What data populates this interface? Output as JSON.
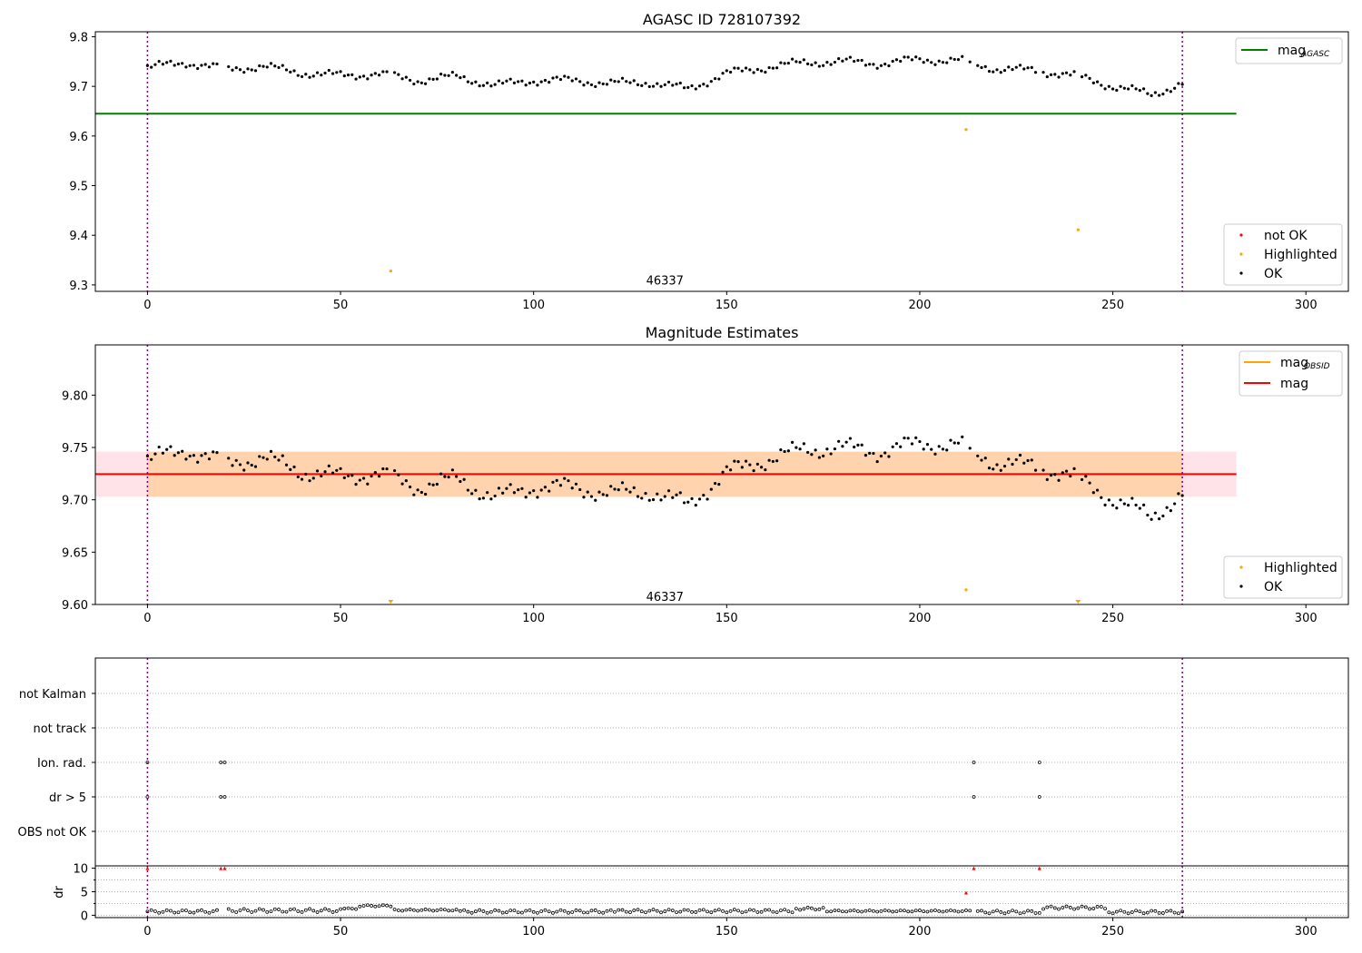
{
  "chart_data": [
    {
      "id": "p1",
      "type": "scatter",
      "title": "AGASC ID 728107392",
      "xlim": [
        -13.5,
        311
      ],
      "ylim": [
        9.287,
        9.81
      ],
      "xticks": [
        0,
        50,
        100,
        150,
        200,
        250,
        300
      ],
      "yticks": [
        9.3,
        9.4,
        9.5,
        9.6,
        9.7,
        9.8
      ],
      "ytick_labels": [
        "9.3",
        "9.4",
        "9.5",
        "9.6",
        "9.7",
        "9.8"
      ],
      "vlines": [
        0,
        268
      ],
      "hlines": [
        {
          "y": 9.645,
          "x0": -13.5,
          "x1": 282,
          "color": "#008000",
          "name": "mag_AGASC"
        }
      ],
      "annotation": {
        "text": "46337",
        "x": 134,
        "y": 9.31
      },
      "series_ok": "ok",
      "highlighted": [
        [
          63,
          9.328
        ],
        [
          212,
          9.613
        ],
        [
          241,
          9.411
        ]
      ],
      "not_ok": [],
      "legend_lines": [
        {
          "label": "mag",
          "sub": "AGASC",
          "color": "#008000"
        }
      ],
      "legend_points": [
        {
          "label": "not OK",
          "color": "#ff0000"
        },
        {
          "label": "Highlighted",
          "color": "#ffa500"
        },
        {
          "label": "OK",
          "color": "#000000"
        }
      ]
    },
    {
      "id": "p2",
      "type": "scatter",
      "title": "Magnitude Estimates",
      "xlim": [
        -13.5,
        311
      ],
      "ylim": [
        9.6,
        9.848
      ],
      "xticks": [
        0,
        50,
        100,
        150,
        200,
        250,
        300
      ],
      "yticks": [
        9.6,
        9.65,
        9.7,
        9.75,
        9.8
      ],
      "ytick_labels": [
        "9.60",
        "9.65",
        "9.70",
        "9.75",
        "9.80"
      ],
      "vlines": [
        0,
        268
      ],
      "bands": [
        {
          "y0": 9.703,
          "y1": 9.746,
          "x0": -13.5,
          "x1": 282,
          "color": "#ffc0cb",
          "opacity": 0.45
        },
        {
          "y0": 9.703,
          "y1": 9.746,
          "x0": 0,
          "x1": 268,
          "color": "#ffa500",
          "opacity": 0.25
        }
      ],
      "hlines": [
        {
          "y": 9.7245,
          "x0": 0,
          "x1": 268,
          "color": "#ffa500",
          "name": "mag_OBSID"
        },
        {
          "y": 9.7245,
          "x0": -13.5,
          "x1": 282,
          "color": "#ff0000",
          "name": "mag"
        }
      ],
      "annotation": {
        "text": "46337",
        "x": 134,
        "y": 9.608
      },
      "series_ok": "ok",
      "highlighted": [
        [
          212,
          9.614
        ]
      ],
      "highlighted_clipped": [
        63,
        241
      ],
      "legend_lines": [
        {
          "label": "mag",
          "sub": "OBSID",
          "color": "#ffa500"
        },
        {
          "label": "mag",
          "sub": "",
          "color": "#ff0000"
        }
      ],
      "legend_points": [
        {
          "label": "Highlighted",
          "color": "#ffa500"
        },
        {
          "label": "OK",
          "color": "#000000"
        }
      ]
    },
    {
      "id": "p3",
      "type": "scatter",
      "title": "",
      "xlim": [
        -13.5,
        311
      ],
      "flag_rows": [
        "not Kalman",
        "not track",
        "Ion. rad.",
        "dr > 5",
        "OBS not OK"
      ],
      "vlines": [
        0,
        268
      ],
      "flags": {
        "not Kalman": [],
        "not track": [],
        "Ion. rad.": [
          0,
          19,
          20,
          214,
          231
        ],
        "dr > 5": [
          0,
          19,
          20,
          214,
          231
        ],
        "OBS not OK": []
      }
    },
    {
      "id": "p4",
      "type": "scatter",
      "title": "",
      "ylabel": "dr",
      "xlim": [
        -13.5,
        311
      ],
      "ylim": [
        -0.5,
        10.5
      ],
      "xticks": [
        0,
        50,
        100,
        150,
        200,
        250,
        300
      ],
      "yticks": [
        0,
        5,
        10
      ],
      "ytick_labels": [
        "0",
        "5",
        "10"
      ],
      "minor_yticks": [
        2.5,
        7.5
      ],
      "vlines": [
        0,
        268
      ],
      "high_points": [
        [
          0,
          10
        ],
        [
          19,
          10
        ],
        [
          20,
          10
        ],
        [
          212,
          4.8
        ],
        [
          214,
          10
        ],
        [
          231,
          10
        ]
      ],
      "dr_segments": [
        {
          "x0": 0,
          "x1": 18,
          "base": 0.8,
          "amp": 0.6
        },
        {
          "x0": 21,
          "x1": 49,
          "base": 1.0,
          "amp": 0.7
        },
        {
          "x0": 50,
          "x1": 54,
          "base": 1.4,
          "amp": 0.2
        },
        {
          "x0": 55,
          "x1": 63,
          "base": 2.0,
          "amp": 0.3
        },
        {
          "x0": 64,
          "x1": 80,
          "base": 1.1,
          "amp": 0.3
        },
        {
          "x0": 81,
          "x1": 120,
          "base": 0.8,
          "amp": 0.6
        },
        {
          "x0": 121,
          "x1": 167,
          "base": 0.9,
          "amp": 0.6
        },
        {
          "x0": 168,
          "x1": 175,
          "base": 1.4,
          "amp": 0.5
        },
        {
          "x0": 176,
          "x1": 213,
          "base": 0.9,
          "amp": 0.3
        },
        {
          "x0": 215,
          "x1": 231,
          "base": 0.7,
          "amp": 0.6
        },
        {
          "x0": 232,
          "x1": 248,
          "base": 1.6,
          "amp": 0.6
        },
        {
          "x0": 249,
          "x1": 268,
          "base": 0.7,
          "amp": 0.6
        }
      ]
    }
  ],
  "ok_data": {
    "knots_x": [
      0,
      10,
      20,
      30,
      40,
      50,
      60,
      70,
      80,
      90,
      100,
      110,
      120,
      130,
      140,
      150,
      160,
      170,
      180,
      190,
      200,
      210,
      220,
      230,
      240,
      250,
      260,
      268
    ],
    "knots_y": [
      9.738,
      9.748,
      9.735,
      9.74,
      9.727,
      9.722,
      9.725,
      9.712,
      9.72,
      9.702,
      9.712,
      9.712,
      9.706,
      9.708,
      9.695,
      9.726,
      9.738,
      9.748,
      9.75,
      9.746,
      9.754,
      9.752,
      9.735,
      9.732,
      9.722,
      9.7,
      9.684,
      9.705
    ],
    "jitter": 0.01,
    "gaps": [
      19,
      20,
      63,
      212,
      214,
      231,
      241
    ]
  }
}
